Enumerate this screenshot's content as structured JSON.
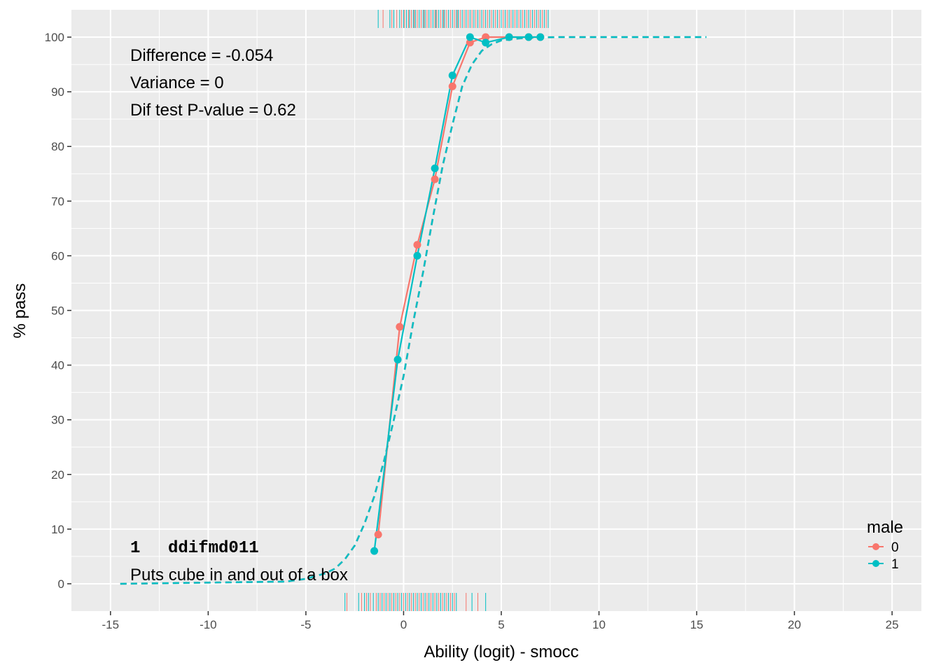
{
  "chart_data": {
    "type": "line",
    "xlabel": "Ability (logit) - smocc",
    "ylabel": "% pass",
    "xlim": [
      -17,
      26.5
    ],
    "ylim": [
      -5,
      105
    ],
    "x_ticks": [
      -15,
      -10,
      -5,
      0,
      5,
      10,
      15,
      20,
      25
    ],
    "x_tick_labels": [
      "-15",
      "-10",
      "-5",
      "0",
      "5",
      "10",
      "15",
      "20",
      "25"
    ],
    "y_ticks": [
      0,
      10,
      20,
      30,
      40,
      50,
      60,
      70,
      80,
      90,
      100
    ],
    "y_tick_labels": [
      "0",
      "10",
      "20",
      "30",
      "40",
      "50",
      "60",
      "70",
      "80",
      "90",
      "100"
    ],
    "grid": true,
    "colors": {
      "group0": "#F8766D",
      "group1": "#00BFC4",
      "panel": "#EBEBEB",
      "grid": "#FFFFFF"
    },
    "annotations": {
      "difference": "Difference = -0.054",
      "variance": "Variance = 0",
      "dif_test": "Dif test P-value = 0.62",
      "item_number": "1",
      "item_code": "ddifmd011",
      "item_label": "Puts cube in and out of a box"
    },
    "legend": {
      "title": "male",
      "position": "bottom-right",
      "entries": [
        "0",
        "1"
      ]
    },
    "series": [
      {
        "name": "0",
        "color": "#F8766D",
        "x": [
          -1.3,
          -0.2,
          0.7,
          1.6,
          2.5,
          3.4,
          4.2,
          5.4,
          6.4,
          7.0
        ],
        "values": [
          9,
          47,
          62,
          74,
          91,
          99,
          100,
          100,
          100,
          100
        ]
      },
      {
        "name": "1",
        "color": "#00BFC4",
        "x": [
          -1.5,
          -0.3,
          0.7,
          1.6,
          2.5,
          3.4,
          4.2,
          5.4,
          6.4,
          7.0
        ],
        "values": [
          6,
          41,
          60,
          76,
          93,
          100,
          99,
          100,
          100,
          100
        ]
      }
    ],
    "model_curve": {
      "style": "dashed",
      "x": [
        -14.5,
        -6,
        -5,
        -4,
        -3.5,
        -3,
        -2.5,
        -2,
        -1.5,
        -1,
        -0.5,
        0,
        0.5,
        1,
        1.5,
        2,
        2.5,
        3,
        3.5,
        4,
        4.5,
        5,
        6,
        7,
        8,
        15.5
      ],
      "values": [
        0,
        0.4,
        0.9,
        1.9,
        2.8,
        4.5,
        7,
        11,
        16,
        22.5,
        30,
        38,
        48,
        57,
        67,
        76.5,
        84,
        91,
        95,
        97.5,
        98.7,
        99.4,
        99.8,
        99.95,
        100,
        100
      ]
    },
    "rug_top": {
      "x": [
        -1.3,
        -1.05,
        -0.7,
        -0.6,
        -0.5,
        -0.35,
        -0.2,
        -0.1,
        0.0,
        0.05,
        0.15,
        0.25,
        0.3,
        0.4,
        0.5,
        0.55,
        0.6,
        0.7,
        0.8,
        0.9,
        1.0,
        1.05,
        1.1,
        1.2,
        1.3,
        1.4,
        1.5,
        1.6,
        1.65,
        1.7,
        1.8,
        1.9,
        2.0,
        2.05,
        2.1,
        2.2,
        2.3,
        2.4,
        2.5,
        2.6,
        2.7,
        2.75,
        2.8,
        2.9,
        3.0,
        3.1,
        3.2,
        3.3,
        3.4,
        3.5,
        3.6,
        3.7,
        3.8,
        3.9,
        4.0,
        4.1,
        4.2,
        4.3,
        4.4,
        4.5,
        4.6,
        4.7,
        4.8,
        4.9,
        5.0,
        5.1,
        5.2,
        5.3,
        5.4,
        5.5,
        5.6,
        5.7,
        5.8,
        5.9,
        6.0,
        6.1,
        6.2,
        6.3,
        6.4,
        6.5,
        6.6,
        6.7,
        6.8,
        6.9,
        7.0,
        7.1,
        7.2,
        7.3,
        7.4
      ],
      "groups": [
        1,
        0,
        1,
        0,
        1,
        0,
        1,
        0,
        1,
        0,
        1,
        0,
        1,
        0,
        1,
        0,
        1,
        0,
        1,
        0,
        1,
        0,
        1,
        0,
        1,
        0,
        1,
        0,
        1,
        0,
        1,
        0,
        1,
        0,
        1,
        0,
        1,
        0,
        1,
        0,
        1,
        0,
        1,
        0,
        1,
        0,
        1,
        0,
        1,
        0,
        1,
        0,
        1,
        0,
        1,
        0,
        1,
        0,
        1,
        0,
        1,
        0,
        1,
        0,
        1,
        0,
        1,
        0,
        1,
        0,
        1,
        0,
        1,
        0,
        1,
        0,
        1,
        0,
        1,
        0,
        1,
        0,
        1,
        0,
        1,
        0,
        1,
        0,
        1
      ]
    },
    "rug_bottom": {
      "x": [
        -3.0,
        -2.9,
        -2.3,
        -2.15,
        -2.0,
        -1.9,
        -1.8,
        -1.7,
        -1.55,
        -1.4,
        -1.3,
        -1.2,
        -1.1,
        -1.0,
        -0.9,
        -0.8,
        -0.7,
        -0.6,
        -0.5,
        -0.4,
        -0.3,
        -0.2,
        -0.1,
        0.0,
        0.1,
        0.2,
        0.3,
        0.4,
        0.5,
        0.6,
        0.7,
        0.8,
        0.9,
        1.0,
        1.1,
        1.2,
        1.3,
        1.4,
        1.5,
        1.6,
        1.7,
        1.8,
        1.9,
        2.0,
        2.1,
        2.2,
        2.3,
        2.4,
        2.5,
        2.6,
        2.7,
        3.2,
        3.5,
        3.8,
        4.2
      ],
      "groups": [
        1,
        0,
        1,
        0,
        1,
        0,
        1,
        0,
        1,
        0,
        1,
        0,
        1,
        0,
        1,
        0,
        1,
        0,
        1,
        0,
        1,
        0,
        1,
        0,
        1,
        0,
        1,
        0,
        1,
        0,
        1,
        0,
        1,
        0,
        1,
        0,
        1,
        0,
        1,
        0,
        1,
        0,
        1,
        0,
        1,
        0,
        1,
        0,
        1,
        0,
        1,
        0,
        1,
        0,
        1
      ]
    }
  }
}
